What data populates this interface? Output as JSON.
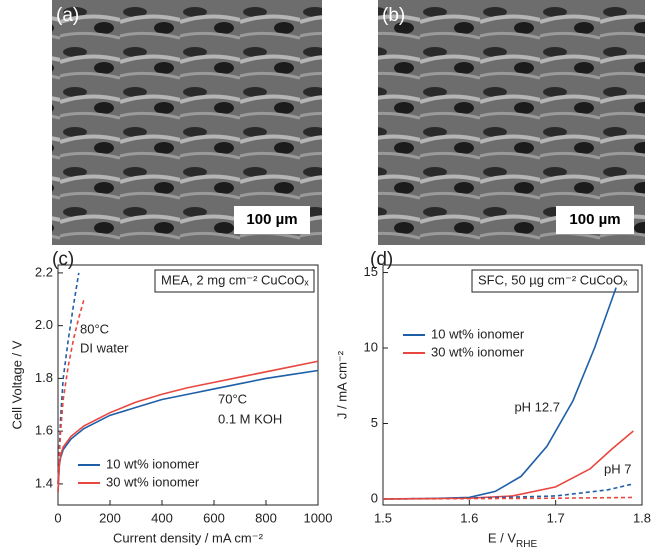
{
  "panels": [
    {
      "label": "(a)",
      "scale_bar": "100 µm"
    },
    {
      "label": "(b)",
      "scale_bar": "100 µm"
    }
  ],
  "chart_data": [
    {
      "type": "line",
      "panel_label": "(c)",
      "title": "MEA, 2 mg cm⁻² CuCoOₓ",
      "xlabel": "Current density / mA cm⁻²",
      "ylabel": "Cell Voltage / V",
      "xlim": [
        0,
        1000
      ],
      "ylim": [
        1.32,
        2.23
      ],
      "xticks": [
        0,
        200,
        400,
        600,
        800,
        1000
      ],
      "yticks": [
        1.4,
        1.6,
        1.8,
        {
          "value": 2.0,
          "label": "2.0"
        },
        2.2
      ],
      "legend": "lower-left",
      "annotations": [
        "80°C",
        "DI water",
        "70°C",
        "0.1 M KOH"
      ],
      "series": [
        {
          "name": "10 wt% ionomer",
          "color": "#1f5fa8",
          "dash": false,
          "x": [
            0,
            5,
            10,
            20,
            50,
            100,
            200,
            300,
            400,
            500,
            600,
            700,
            800,
            900,
            1000
          ],
          "values": [
            1.37,
            1.47,
            1.5,
            1.53,
            1.57,
            1.61,
            1.66,
            1.69,
            1.72,
            1.74,
            1.76,
            1.78,
            1.8,
            1.815,
            1.83
          ]
        },
        {
          "name": "30 wt% ionomer",
          "color": "#e8473f",
          "dash": false,
          "x": [
            0,
            5,
            10,
            20,
            50,
            100,
            200,
            300,
            400,
            500,
            600,
            700,
            800,
            900,
            1000
          ],
          "values": [
            1.37,
            1.47,
            1.51,
            1.54,
            1.58,
            1.62,
            1.67,
            1.71,
            1.74,
            1.765,
            1.785,
            1.805,
            1.825,
            1.845,
            1.865
          ]
        },
        {
          "color": "#1f5fa8",
          "dash": true,
          "x": [
            0,
            10,
            20,
            40,
            60,
            80
          ],
          "values": [
            1.4,
            1.65,
            1.8,
            1.95,
            2.08,
            2.2
          ]
        },
        {
          "color": "#e8473f",
          "dash": true,
          "x": [
            0,
            10,
            20,
            40,
            60,
            80,
            100
          ],
          "values": [
            1.4,
            1.6,
            1.72,
            1.85,
            1.95,
            2.03,
            2.1
          ]
        }
      ]
    },
    {
      "type": "line",
      "panel_label": "(d)",
      "title": "SFC, 50 µg cm⁻² CuCoOₓ",
      "xlabel": "E / V",
      "xlabel_sub": "RHE",
      "ylabel": "J / mA cm⁻²",
      "xlim": [
        1.5,
        1.8
      ],
      "ylim": [
        -0.4,
        15.5
      ],
      "xticks": [
        1.5,
        1.6,
        1.7,
        1.8
      ],
      "yticks": [
        0,
        5,
        10,
        15
      ],
      "legend": "upper-left",
      "annotations": [
        "pH 12.7",
        "pH 7"
      ],
      "series": [
        {
          "name": "10 wt% ionomer",
          "color": "#1f5fa8",
          "dash": false,
          "x": [
            1.5,
            1.55,
            1.6,
            1.63,
            1.66,
            1.69,
            1.72,
            1.745,
            1.77
          ],
          "values": [
            0,
            0.02,
            0.1,
            0.5,
            1.5,
            3.5,
            6.5,
            10,
            14
          ]
        },
        {
          "name": "30 wt% ionomer",
          "color": "#e8473f",
          "dash": false,
          "x": [
            1.5,
            1.6,
            1.65,
            1.7,
            1.74,
            1.765,
            1.79
          ],
          "values": [
            0,
            0.05,
            0.2,
            0.8,
            2,
            3.3,
            4.5
          ]
        },
        {
          "color": "#1f5fa8",
          "dash": true,
          "x": [
            1.5,
            1.6,
            1.7,
            1.76,
            1.79
          ],
          "values": [
            0,
            0.05,
            0.2,
            0.6,
            1.0
          ]
        },
        {
          "color": "#e8473f",
          "dash": true,
          "x": [
            1.5,
            1.6,
            1.7,
            1.79
          ],
          "values": [
            0,
            0.02,
            0.05,
            0.1
          ]
        }
      ]
    }
  ]
}
